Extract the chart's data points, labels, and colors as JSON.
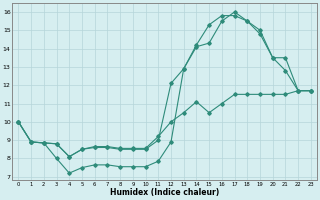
{
  "line1_x": [
    0,
    1,
    2,
    3,
    4,
    5,
    6,
    7,
    8,
    9,
    10,
    11,
    12,
    13,
    14,
    15,
    16,
    17,
    18,
    19,
    20,
    21,
    22,
    23
  ],
  "line1_y": [
    10.0,
    8.9,
    8.85,
    8.8,
    8.1,
    8.5,
    8.6,
    8.6,
    8.5,
    8.5,
    8.5,
    9.0,
    12.1,
    12.9,
    14.1,
    14.3,
    15.5,
    16.0,
    15.5,
    14.8,
    13.5,
    13.5,
    11.7,
    11.7
  ],
  "line2_x": [
    0,
    1,
    2,
    3,
    4,
    5,
    6,
    7,
    8,
    9,
    10,
    11,
    12,
    13,
    14,
    15,
    16,
    17,
    18,
    19,
    20,
    21,
    22,
    23
  ],
  "line2_y": [
    10.0,
    8.9,
    8.85,
    8.0,
    7.2,
    7.5,
    7.65,
    7.65,
    7.55,
    7.55,
    7.55,
    7.85,
    8.9,
    12.9,
    14.2,
    15.3,
    15.8,
    15.8,
    15.5,
    15.0,
    13.5,
    12.8,
    11.7,
    11.7
  ],
  "line3_x": [
    0,
    1,
    2,
    3,
    4,
    5,
    6,
    7,
    8,
    9,
    10,
    11,
    12,
    13,
    14,
    15,
    16,
    17,
    18,
    19,
    20,
    21,
    22,
    23
  ],
  "line3_y": [
    10.0,
    8.9,
    8.85,
    8.8,
    8.1,
    8.5,
    8.65,
    8.65,
    8.55,
    8.55,
    8.55,
    9.2,
    10.0,
    10.5,
    11.1,
    10.5,
    11.0,
    11.5,
    11.5,
    11.5,
    11.5,
    11.5,
    11.7,
    11.7
  ],
  "color": "#2e8b7a",
  "bg_color": "#d6eef0",
  "grid_color": "#b5d5da",
  "xlabel": "Humidex (Indice chaleur)",
  "xlabel_fontsize": 5.5,
  "ylabel_ticks": [
    7,
    8,
    9,
    10,
    11,
    12,
    13,
    14,
    15,
    16
  ],
  "xticks": [
    0,
    1,
    2,
    3,
    4,
    5,
    6,
    7,
    8,
    9,
    10,
    11,
    12,
    13,
    14,
    15,
    16,
    17,
    18,
    19,
    20,
    21,
    22,
    23
  ],
  "ylim": [
    6.8,
    16.5
  ],
  "xlim": [
    -0.5,
    23.5
  ]
}
